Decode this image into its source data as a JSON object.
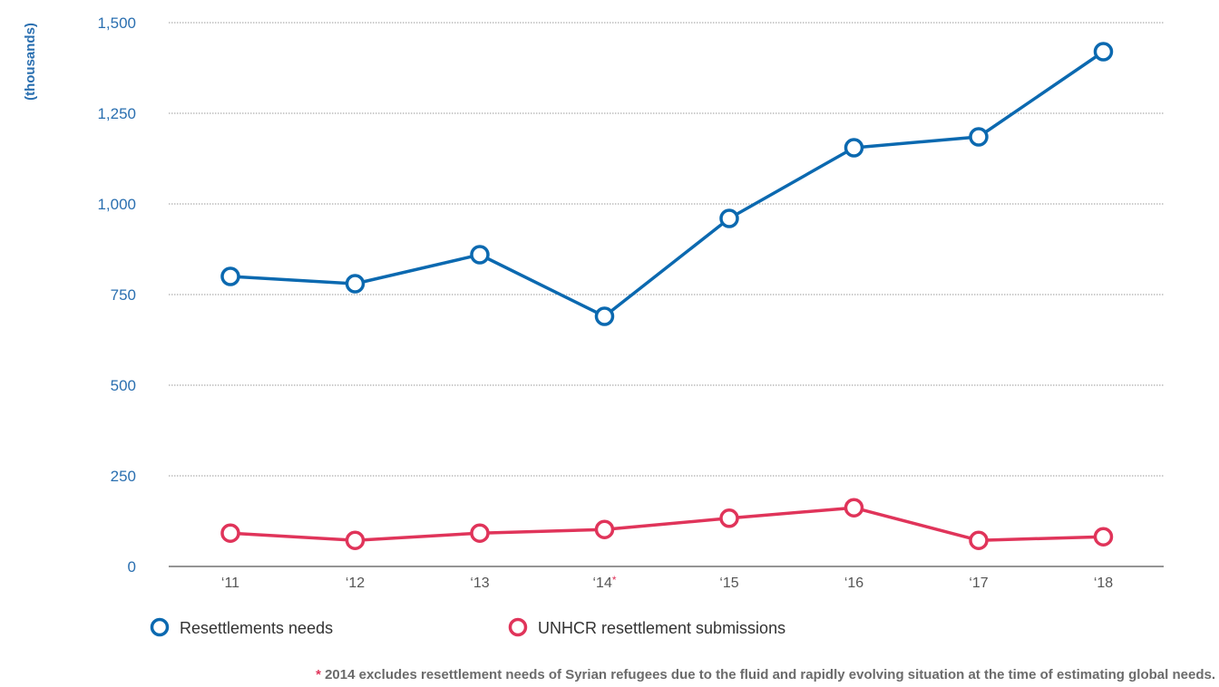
{
  "chart_data": {
    "type": "line",
    "ylabel": "(thousands)",
    "categories": [
      "‘11",
      "‘12",
      "‘13",
      "‘14",
      "‘15",
      "‘16",
      "‘17",
      "‘18"
    ],
    "category_markers": {
      "‘14": "*"
    },
    "yticks": [
      "0",
      "250",
      "500",
      "750",
      "1,000",
      "1,250",
      "1,500"
    ],
    "ylim": [
      0,
      1500
    ],
    "grid": true,
    "legend_position": "bottom",
    "series": [
      {
        "name": "Resettlements needs",
        "color": "#0b69b0",
        "values": [
          800,
          780,
          860,
          690,
          960,
          1155,
          1185,
          1420
        ]
      },
      {
        "name": "UNHCR resettlement submissions",
        "color": "#e0345a",
        "values": [
          92,
          72,
          92,
          102,
          133,
          162,
          72,
          82
        ]
      }
    ]
  },
  "footnote": {
    "marker": "*",
    "text": " 2014 excludes resettlement needs of Syrian refugees due to the fluid and rapidly evolving situation at the time of estimating global needs."
  }
}
